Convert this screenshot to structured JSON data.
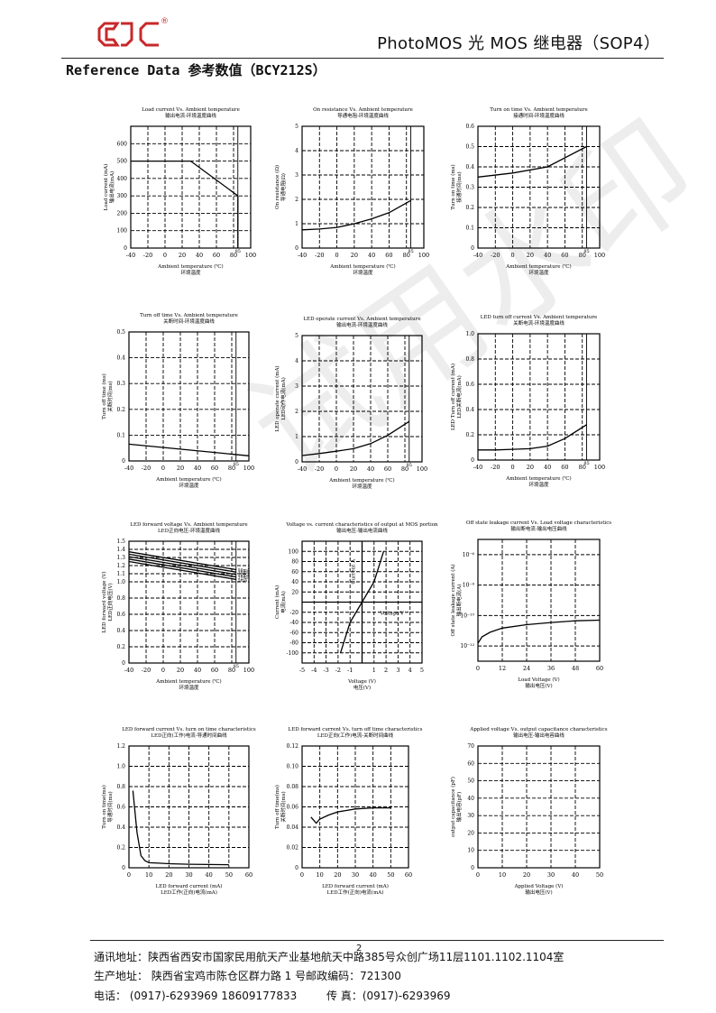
{
  "header": {
    "logo_mark": "QJC",
    "logo_registered": "®",
    "title": "PhotoMOS 光 MOS 继电器（SOP4）"
  },
  "section_title": "Reference Data 参考数值（BCY212S）",
  "watermark": "试用水印",
  "page_number": "2",
  "footer": {
    "address": "通讯地址：陕西省西安市国家民用航天产业基地航天中路385号众创广场11层1101.1102.1104室",
    "production": "生产地址：  陕西省宝鸡市陈仓区群力路 1 号邮政编码：721300",
    "phone": "电话：    (0917)-6293969    18609177833",
    "fax": "传        真：(0917)-6293969"
  },
  "chart_data": [
    {
      "type": "line",
      "title": "Load current Vs. Ambient temperature",
      "subtitle": "输出电流-环境温度曲线",
      "xlabel": "Ambient temperature (℃)",
      "xlabel2": "环境温度",
      "ylabel": "Load current (mA)",
      "ylabel2": "输出电流(mA)",
      "xlim": [
        -40,
        100
      ],
      "ylim": [
        0,
        700
      ],
      "xticks": [
        -40,
        -20,
        0,
        20,
        40,
        60,
        80,
        100
      ],
      "yticks": [
        0,
        100,
        200,
        300,
        400,
        500,
        600
      ],
      "xtick_labels": [
        "-40",
        "-20",
        "0",
        "20",
        "40",
        "60",
        "80",
        "100"
      ],
      "ytick_labels": [
        "0",
        "100",
        "200",
        "300",
        "400",
        "500",
        "600"
      ],
      "marker_label": "85",
      "marker_x": 85,
      "series": [
        {
          "x": [
            -40,
            30,
            85,
            85
          ],
          "y": [
            500,
            500,
            300,
            0
          ]
        }
      ]
    },
    {
      "type": "line",
      "title": "On resistance Vs. Ambient temperature",
      "subtitle": "导通电阻-环境温度曲线",
      "xlabel": "Ambient temperature (℃)",
      "xlabel2": "环境温度",
      "ylabel": "On resistance (Ω)",
      "ylabel2": "导通电阻(Ω)",
      "xlim": [
        -40,
        100
      ],
      "ylim": [
        0,
        5
      ],
      "xticks": [
        -40,
        -20,
        0,
        20,
        40,
        60,
        80,
        100
      ],
      "yticks": [
        0,
        1,
        2,
        3,
        4,
        5
      ],
      "xtick_labels": [
        "-40",
        "-20",
        "0",
        "20",
        "40",
        "60",
        "80",
        "100"
      ],
      "ytick_labels": [
        "0",
        "1",
        "2",
        "3",
        "4",
        "5"
      ],
      "marker_label": "85",
      "marker_x": 85,
      "series": [
        {
          "x": [
            -40,
            -20,
            0,
            20,
            40,
            60,
            85
          ],
          "y": [
            0.75,
            0.78,
            0.85,
            1.0,
            1.2,
            1.45,
            1.95
          ]
        }
      ]
    },
    {
      "type": "line",
      "title": "Turn on time Vs. Ambient temperature",
      "subtitle": "接通时间-环境温度曲线",
      "xlabel": "Ambient temperature (℃)",
      "xlabel2": "环境温度",
      "ylabel": "Turn on time (ms)",
      "ylabel2": "接通时间(ms)",
      "xlim": [
        -40,
        100
      ],
      "ylim": [
        0,
        0.6
      ],
      "xticks": [
        -40,
        -20,
        0,
        20,
        40,
        60,
        80,
        100
      ],
      "yticks": [
        0,
        0.1,
        0.2,
        0.3,
        0.4,
        0.5,
        0.6
      ],
      "xtick_labels": [
        "-40",
        "-20",
        "0",
        "20",
        "40",
        "60",
        "80",
        "100"
      ],
      "ytick_labels": [
        "0",
        "0.1",
        "0.2",
        "0.3",
        "0.4",
        "0.5",
        "0.6"
      ],
      "marker_label": "85",
      "marker_x": 85,
      "series": [
        {
          "x": [
            -40,
            0,
            40,
            85
          ],
          "y": [
            0.35,
            0.37,
            0.4,
            0.5
          ]
        }
      ]
    },
    {
      "type": "line",
      "title": "Turn off time Vs. Ambient temperature",
      "subtitle": "关断时间-环境温度曲线",
      "xlabel": "Ambient temperature (℃)",
      "xlabel2": "环境温度",
      "ylabel": "Turn off time (ms)",
      "ylabel2": "关断时间(ms)",
      "xlim": [
        -40,
        100
      ],
      "ylim": [
        0,
        0.5
      ],
      "xticks": [
        -40,
        -20,
        0,
        20,
        40,
        60,
        80,
        100
      ],
      "yticks": [
        0,
        0.1,
        0.2,
        0.3,
        0.4,
        0.5
      ],
      "xtick_labels": [
        "-40",
        "-20",
        "0",
        "20",
        "40",
        "60",
        "80",
        "100"
      ],
      "ytick_labels": [
        "0",
        "0.1",
        "0.2",
        "0.3",
        "0.4",
        "0.5"
      ],
      "marker_label": "85",
      "marker_x": 85,
      "series": [
        {
          "x": [
            -40,
            100
          ],
          "y": [
            0.065,
            0.02
          ]
        }
      ]
    },
    {
      "type": "line",
      "title": "LED operate current Vs. Ambient temperature",
      "subtitle": "输出电流-环境温度曲线",
      "xlabel": "Ambient temperature (℃)",
      "xlabel2": "环境温度",
      "ylabel": "LED operate current (mA)",
      "ylabel2": "LED动作电流(mA)",
      "xlim": [
        -40,
        100
      ],
      "ylim": [
        0,
        5
      ],
      "xticks": [
        -40,
        -20,
        0,
        20,
        40,
        60,
        80,
        100
      ],
      "yticks": [
        0,
        1,
        2,
        3,
        4,
        5
      ],
      "xtick_labels": [
        "-40",
        "-20",
        "0",
        "20",
        "40",
        "60",
        "80",
        "100"
      ],
      "ytick_labels": [
        "0",
        "1",
        "2",
        "3",
        "4",
        "5"
      ],
      "marker_label": "85",
      "marker_x": 85,
      "series": [
        {
          "x": [
            -40,
            -20,
            0,
            20,
            40,
            60,
            85
          ],
          "y": [
            0.25,
            0.33,
            0.42,
            0.52,
            0.72,
            1.05,
            1.6
          ]
        }
      ]
    },
    {
      "type": "line",
      "title": "LED turn off current Vs. Ambient temperature",
      "subtitle": "关断电流-环境温度曲线",
      "xlabel": "Ambient temperature (℃)",
      "xlabel2": "环境温度",
      "ylabel": "LED Turn off current (mA)",
      "ylabel2": "LED关断电流(mA)",
      "xlim": [
        -40,
        100
      ],
      "ylim": [
        0,
        1.0
      ],
      "xticks": [
        -40,
        -20,
        0,
        20,
        40,
        60,
        80,
        100
      ],
      "yticks": [
        0,
        0.2,
        0.4,
        0.6,
        0.8,
        1.0
      ],
      "xtick_labels": [
        "-40",
        "-20",
        "0",
        "20",
        "40",
        "60",
        "80",
        "100"
      ],
      "ytick_labels": [
        "0",
        "0.2",
        "0.4",
        "0.6",
        "0.8",
        "1.0"
      ],
      "marker_label": "85",
      "marker_x": 85,
      "series": [
        {
          "x": [
            -40,
            -20,
            0,
            20,
            40,
            60,
            85
          ],
          "y": [
            0.08,
            0.08,
            0.085,
            0.09,
            0.11,
            0.17,
            0.28
          ]
        }
      ]
    },
    {
      "type": "line",
      "title": "LED forward voltage Vs. Ambient temperature",
      "subtitle": "LED正向电压-环境温度曲线",
      "xlabel": "Ambient temperature (℃)",
      "xlabel2": "环境温度",
      "ylabel": "LED forward voltage (V)",
      "ylabel2": "LED正向电压(V)",
      "xlim": [
        -40,
        100
      ],
      "ylim": [
        0,
        1.5
      ],
      "xticks": [
        -40,
        -20,
        0,
        20,
        40,
        60,
        80,
        100
      ],
      "yticks": [
        0,
        0.2,
        0.4,
        0.6,
        0.8,
        1.0,
        1.1,
        1.2,
        1.3,
        1.4,
        1.5
      ],
      "xtick_labels": [
        "-40",
        "-20",
        "0",
        "20",
        "40",
        "60",
        "80",
        "100"
      ],
      "ytick_labels": [
        "0",
        "0.2",
        "0.4",
        "0.6",
        "0.8",
        "1.0",
        "1.1",
        "1.2",
        "1.3",
        "1.4",
        "1.5"
      ],
      "marker_label": "85",
      "marker_x": 85,
      "series": [
        {
          "name": "50mA",
          "x": [
            -40,
            85
          ],
          "y": [
            1.37,
            1.15
          ]
        },
        {
          "name": "30mA",
          "x": [
            -40,
            85
          ],
          "y": [
            1.34,
            1.12
          ]
        },
        {
          "name": "20mA",
          "x": [
            -40,
            85
          ],
          "y": [
            1.31,
            1.09
          ]
        },
        {
          "name": "10mA",
          "x": [
            -40,
            85
          ],
          "y": [
            1.28,
            1.06
          ]
        },
        {
          "name": "5mA",
          "x": [
            -40,
            85
          ],
          "y": [
            1.25,
            1.03
          ]
        }
      ]
    },
    {
      "type": "line",
      "title": "Voltage vs. current characteristics of output at MOS portion",
      "subtitle": "输出电压-输出电流曲线",
      "xlabel": "Voltage (V)",
      "xlabel2": "电压(V)",
      "ylabel": "Current (mA)",
      "ylabel2": "电流(mA)",
      "inner_xlabel": "Voltage V",
      "inner_ylabel": "Current A",
      "xlim": [
        -5,
        5
      ],
      "ylim": [
        -120,
        120
      ],
      "xticks": [
        -5,
        -4,
        -3,
        -2,
        -1,
        1,
        2,
        3,
        4,
        5
      ],
      "yticks": [
        -100,
        -80,
        -60,
        -40,
        -20,
        20,
        40,
        60,
        80,
        100
      ],
      "xtick_labels": [
        "-5",
        "-4",
        "-3",
        "-2",
        "-1",
        "1",
        "2",
        "3",
        "4",
        "5"
      ],
      "ytick_labels": [
        "-100",
        "-80",
        "-60",
        "-40",
        "-20",
        "20",
        "40",
        "60",
        "80",
        "100"
      ],
      "series": [
        {
          "x": [
            -1.8,
            -1.0,
            0,
            1.0,
            1.8
          ],
          "y": [
            -100,
            -40,
            0,
            40,
            100
          ]
        }
      ]
    },
    {
      "type": "line",
      "title": "Off state leakage current Vs. Load voltage characteristics",
      "subtitle": "输出断电流-输出电压曲线",
      "xlabel": "Load Voltage (V)",
      "xlabel2": "输出电压(V)",
      "ylabel": "Off state leakage current (A)",
      "ylabel2": "输出断电流(A)",
      "xlim": [
        0,
        60
      ],
      "yscale": "log",
      "ylim": [
        1e-13,
        1e-05
      ],
      "xticks": [
        0,
        12,
        24,
        36,
        48,
        60
      ],
      "yticks": [
        1e-12,
        1e-10,
        1e-08,
        1e-06
      ],
      "xtick_labels": [
        "0",
        "12",
        "24",
        "36",
        "48",
        "60"
      ],
      "ytick_labels": [
        "10⁻¹²",
        "10⁻¹⁰",
        "10⁻⁸",
        "10⁻⁶"
      ],
      "series": [
        {
          "x": [
            0,
            2,
            6,
            12,
            24,
            36,
            48,
            60
          ],
          "y": [
            1.5e-12,
            4e-12,
            8e-12,
            1.5e-11,
            2.5e-11,
            3.5e-11,
            4.5e-11,
            5e-11
          ]
        }
      ]
    },
    {
      "type": "line",
      "title": "LED forward current Vs. turn on time characteristics",
      "subtitle": "LED正向(工作)电流-导通时间曲线",
      "xlabel": "LED forward current (mA)",
      "xlabel2": "LED工作(正向)电流(mA)",
      "ylabel": "Turn on time(ms)",
      "ylabel2": "导通时间(ms)",
      "xlim": [
        0,
        60
      ],
      "ylim": [
        0,
        1.2
      ],
      "xticks": [
        0,
        10,
        20,
        30,
        40,
        50,
        60
      ],
      "yticks": [
        0,
        0.2,
        0.4,
        0.6,
        0.8,
        1.0,
        1.2
      ],
      "xtick_labels": [
        "0",
        "10",
        "20",
        "30",
        "40",
        "50",
        "60"
      ],
      "ytick_labels": [
        "0",
        "0.2",
        "0.4",
        "0.6",
        "0.8",
        "1.0",
        "1.2"
      ],
      "series": [
        {
          "x": [
            2,
            4,
            6,
            8,
            10,
            15,
            20,
            30,
            50
          ],
          "y": [
            0.76,
            0.35,
            0.12,
            0.07,
            0.05,
            0.045,
            0.04,
            0.035,
            0.03
          ]
        }
      ]
    },
    {
      "type": "line",
      "title": "LED forward current Vs. turn off time characteristics",
      "subtitle": "LED正向(工作)电流-关断时间曲线",
      "xlabel": "LED forward current (mA)",
      "xlabel2": "LED工作(正向)电流(mA)",
      "ylabel": "Turn off time(ms)",
      "ylabel2": "关断时间(ms)",
      "xlim": [
        0,
        60
      ],
      "ylim": [
        0,
        0.12
      ],
      "xticks": [
        0,
        10,
        20,
        30,
        40,
        50,
        60
      ],
      "yticks": [
        0,
        0.02,
        0.04,
        0.06,
        0.08,
        0.1,
        0.12
      ],
      "xtick_labels": [
        "0",
        "10",
        "20",
        "30",
        "40",
        "50",
        "60"
      ],
      "ytick_labels": [
        "0",
        "0.02",
        "0.04",
        "0.06",
        "0.08",
        "0.10",
        "0.12"
      ],
      "series": [
        {
          "x": [
            5,
            8,
            10,
            15,
            20,
            30,
            40,
            50
          ],
          "y": [
            0.05,
            0.044,
            0.048,
            0.052,
            0.055,
            0.058,
            0.059,
            0.059
          ]
        }
      ]
    },
    {
      "type": "line",
      "title": "Applied voltage Vs. output capacitance characteristics",
      "subtitle": "输出电压-输出电容曲线",
      "xlabel": "Applied Voltage (V)",
      "xlabel2": "输出电压(V)",
      "ylabel": "output capacitance (pF)",
      "ylabel2": "输出电容(pF)",
      "xlim": [
        0,
        50
      ],
      "ylim": [
        0,
        70
      ],
      "xticks": [
        0,
        10,
        20,
        30,
        40,
        50
      ],
      "yticks": [
        0,
        10,
        20,
        30,
        40,
        50,
        60,
        70
      ],
      "xtick_labels": [
        "0",
        "10",
        "20",
        "30",
        "40",
        "50"
      ],
      "ytick_labels": [
        "0",
        "10",
        "20",
        "30",
        "40",
        "50",
        "60",
        "70"
      ],
      "series": []
    }
  ]
}
